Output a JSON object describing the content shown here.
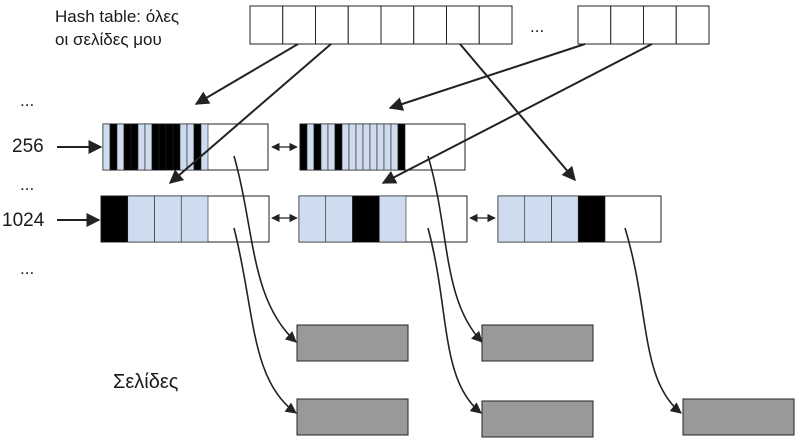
{
  "title_line1": "Hash table: όλες",
  "title_line2": "οι σελίδες μου",
  "ellipsis": "...",
  "size_labels": [
    "256",
    "1024"
  ],
  "pages_label": "Σελίδες",
  "colors": {
    "used": "#000000",
    "free": "#cfdcf0",
    "page": "#999999",
    "stroke": "#222222",
    "cell": "#ffffff"
  },
  "hash_table": {
    "left_cells": 8,
    "right_cells": 4
  },
  "row_256": {
    "chunks": [
      [
        "free",
        "used",
        "free",
        "used",
        "used",
        "free",
        "free",
        "used",
        "used",
        "used",
        "used",
        "free",
        "free",
        "used",
        "free"
      ],
      [
        "used",
        "free",
        "used",
        "free",
        "free",
        "used",
        "free",
        "free",
        "free",
        "free",
        "free",
        "free",
        "free",
        "free",
        "used"
      ]
    ]
  },
  "row_1024": {
    "chunks": [
      [
        "used",
        "free",
        "free",
        "free"
      ],
      [
        "free",
        "free",
        "used",
        "free"
      ],
      [
        "free",
        "free",
        "free",
        "used"
      ]
    ]
  }
}
